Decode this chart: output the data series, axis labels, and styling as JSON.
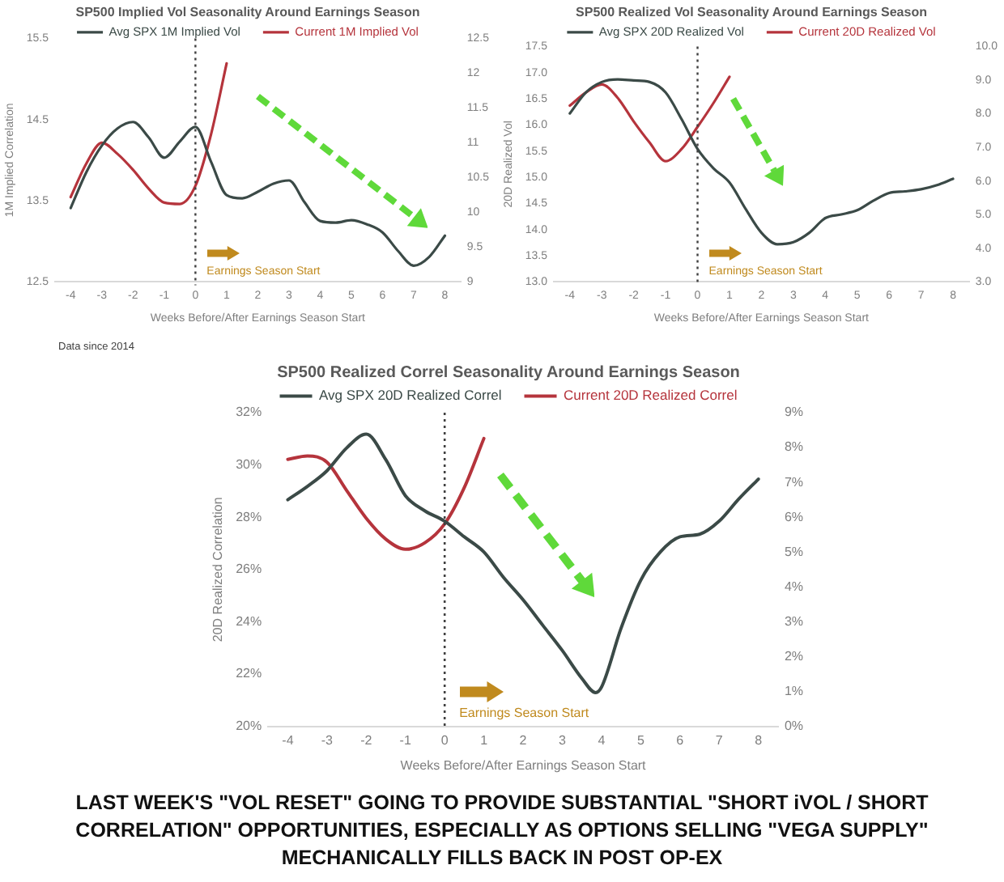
{
  "chart_data": [
    {
      "type": "line",
      "title": "SP500 Implied Vol Seasonality Around Earnings Season",
      "xlabel": "Weeks Before/After Earnings Season Start",
      "ylabel": "1M Implied Correlation",
      "x": [
        -4,
        -3.5,
        -3,
        -2.5,
        -2,
        -1.5,
        -1,
        -0.5,
        0,
        0.5,
        1,
        1.5,
        2,
        2.5,
        3,
        3.5,
        4,
        4.5,
        5,
        5.5,
        6,
        6.5,
        7,
        7.5,
        8
      ],
      "series": [
        {
          "name": "Avg SPX 1M Implied Vol",
          "color": "#3b4a47",
          "values": [
            13.41,
            13.85,
            14.18,
            14.39,
            14.47,
            14.28,
            14.03,
            14.23,
            14.41,
            13.98,
            13.57,
            13.53,
            13.61,
            13.71,
            13.75,
            13.48,
            13.25,
            13.23,
            13.26,
            13.21,
            13.11,
            12.88,
            12.7,
            12.81,
            13.07
          ]
        },
        {
          "name": "Current 1M Implied Vol",
          "color": "#b5343c",
          "axis": "y2",
          "x": [
            -4,
            -3.5,
            -3,
            -2.5,
            -2,
            -1.5,
            -1,
            -0.5,
            0,
            0.5,
            1
          ],
          "values": [
            10.22,
            10.7,
            11.0,
            10.84,
            10.61,
            10.34,
            10.14,
            10.12,
            10.38,
            11.12,
            12.14
          ]
        }
      ],
      "xlim": [
        -4.5,
        8.5
      ],
      "xticks": [
        -4,
        -3,
        -2,
        -1,
        0,
        1,
        2,
        3,
        4,
        5,
        6,
        7,
        8
      ],
      "ylim": [
        12.5,
        15.5
      ],
      "yticks": [
        12.5,
        13.5,
        14.5,
        15.5
      ],
      "y2lim": [
        9,
        12.5
      ],
      "y2ticks": [
        9,
        9.5,
        10,
        10.5,
        11,
        11.5,
        12,
        12.5
      ],
      "legend": "top",
      "ref_lines": [
        {
          "axis": "x",
          "value": 0,
          "label": "Earnings Season Start",
          "color": "#404040",
          "line_style": "dotted"
        }
      ],
      "annotations": [
        "Data since 2014"
      ]
    },
    {
      "type": "line",
      "title": "SP500 Realized Vol Seasonality Around Earnings Season",
      "xlabel": "Weeks Before/After Earnings Season Start",
      "ylabel": "20D Realized Vol",
      "x": [
        -4,
        -3.5,
        -3,
        -2.5,
        -2,
        -1.5,
        -1,
        -0.5,
        0,
        0.5,
        1,
        1.5,
        2,
        2.5,
        3,
        3.5,
        4,
        4.5,
        5,
        5.5,
        6,
        6.5,
        7,
        7.5,
        8
      ],
      "series": [
        {
          "name": "Avg SPX 20D Realized Vol",
          "color": "#3b4a47",
          "values": [
            16.22,
            16.62,
            16.82,
            16.87,
            16.85,
            16.82,
            16.62,
            16.11,
            15.54,
            15.17,
            14.9,
            14.4,
            13.94,
            13.72,
            13.76,
            13.94,
            14.22,
            14.29,
            14.37,
            14.55,
            14.7,
            14.73,
            14.77,
            14.85,
            14.97
          ]
        },
        {
          "name": "Current 20D Realized Vol",
          "color": "#b5343c",
          "axis": "y2",
          "x": [
            -4,
            -3.5,
            -3,
            -2.5,
            -2,
            -1.5,
            -1,
            -0.5,
            0,
            0.5,
            1
          ],
          "values": [
            8.24,
            8.63,
            8.87,
            8.47,
            7.77,
            7.14,
            6.59,
            6.95,
            7.61,
            8.32,
            9.1
          ]
        }
      ],
      "xlim": [
        -4.5,
        8.5
      ],
      "xticks": [
        -4,
        -3,
        -2,
        -1,
        0,
        1,
        2,
        3,
        4,
        5,
        6,
        7,
        8
      ],
      "ylim": [
        13,
        17.5
      ],
      "yticks": [
        {
          "value": 13,
          "label": "13.0"
        },
        {
          "value": 13.5,
          "label": "13.5"
        },
        {
          "value": 14,
          "label": "14.0"
        },
        {
          "value": 14.5,
          "label": "14.5"
        },
        {
          "value": 15,
          "label": "15.0"
        },
        {
          "value": 15.5,
          "label": "15.5"
        },
        {
          "value": 16,
          "label": "16.0"
        },
        {
          "value": 16.5,
          "label": "16.5"
        },
        {
          "value": 17,
          "label": "17.0"
        },
        {
          "value": 17.5,
          "label": "17.5"
        }
      ],
      "y2lim": [
        3,
        10
      ],
      "y2ticks": [
        {
          "value": 3,
          "label": "3.0"
        },
        {
          "value": 4,
          "label": "4.0"
        },
        {
          "value": 5,
          "label": "5.0"
        },
        {
          "value": 6,
          "label": "6.0"
        },
        {
          "value": 7,
          "label": "7.0"
        },
        {
          "value": 8,
          "label": "8.0"
        },
        {
          "value": 9,
          "label": "9.0"
        },
        {
          "value": 10,
          "label": "10.0"
        }
      ],
      "legend": "top",
      "ref_lines": [
        {
          "axis": "x",
          "value": 0,
          "label": "Earnings Season Start",
          "color": "#404040",
          "line_style": "dotted"
        }
      ]
    },
    {
      "type": "line",
      "title": "SP500 Realized Correl Seasonality Around Earnings Season",
      "xlabel": "Weeks Before/After Earnings Season Start",
      "ylabel": "20D Realized Correlation",
      "x": [
        -4,
        -3.5,
        -3,
        -2.5,
        -2,
        -1.5,
        -1,
        -0.5,
        0,
        0.5,
        1,
        1.5,
        2,
        2.5,
        3,
        3.5,
        3.85,
        4,
        4.5,
        5,
        5.5,
        6,
        6.5,
        7,
        7.5,
        8
      ],
      "series": [
        {
          "name": "Avg SPX 20D Realized Correl",
          "color": "#3b4a47",
          "values": [
            28.67,
            29.18,
            29.78,
            30.65,
            31.18,
            30.2,
            28.82,
            28.24,
            27.85,
            27.25,
            26.67,
            25.7,
            24.84,
            23.87,
            22.9,
            21.83,
            21.29,
            21.5,
            23.76,
            25.59,
            26.67,
            27.25,
            27.35,
            27.85,
            28.7,
            29.46
          ]
        },
        {
          "name": "Current 20D Realized Correl",
          "color": "#b5343c",
          "axis": "y2",
          "x": [
            -4,
            -3.5,
            -3,
            -2.5,
            -2,
            -1.5,
            -1,
            -0.5,
            0,
            0.5,
            1
          ],
          "values": [
            7.66,
            7.76,
            7.58,
            6.77,
            5.97,
            5.37,
            5.08,
            5.27,
            5.81,
            6.85,
            8.26
          ]
        }
      ],
      "xlim": [
        -4.5,
        8.5
      ],
      "xticks": [
        -4,
        -3,
        -2,
        -1,
        0,
        1,
        2,
        3,
        4,
        5,
        6,
        7,
        8
      ],
      "ylim": [
        20,
        32
      ],
      "yticks": [
        {
          "value": 20,
          "label": "20%"
        },
        {
          "value": 22,
          "label": "22%"
        },
        {
          "value": 24,
          "label": "24%"
        },
        {
          "value": 26,
          "label": "26%"
        },
        {
          "value": 28,
          "label": "28%"
        },
        {
          "value": 30,
          "label": "30%"
        },
        {
          "value": 32,
          "label": "32%"
        }
      ],
      "y2lim": [
        0,
        9
      ],
      "y2ticks": [
        {
          "value": 0,
          "label": "0%"
        },
        {
          "value": 1,
          "label": "1%"
        },
        {
          "value": 2,
          "label": "2%"
        },
        {
          "value": 3,
          "label": "3%"
        },
        {
          "value": 4,
          "label": "4%"
        },
        {
          "value": 5,
          "label": "5%"
        },
        {
          "value": 6,
          "label": "6%"
        },
        {
          "value": 7,
          "label": "7%"
        },
        {
          "value": 8,
          "label": "8%"
        },
        {
          "value": 9,
          "label": "9%"
        }
      ],
      "legend": "top",
      "ref_lines": [
        {
          "axis": "x",
          "value": 0,
          "label": "Earnings Season Start",
          "color": "#404040",
          "line_style": "dotted"
        }
      ],
      "annotations": [
        "LAST WEEK'S \"VOL RESET\" GOING TO PROVIDE SUBSTANTIAL \"SHORT iVOL / SHORT CORRELATION\" OPPORTUNITIES, ESPECIALLY AS OPTIONS SELLING \"VEGA SUPPLY\" MECHANICALLY FILLS BACK IN POST OP-EX"
      ]
    }
  ]
}
